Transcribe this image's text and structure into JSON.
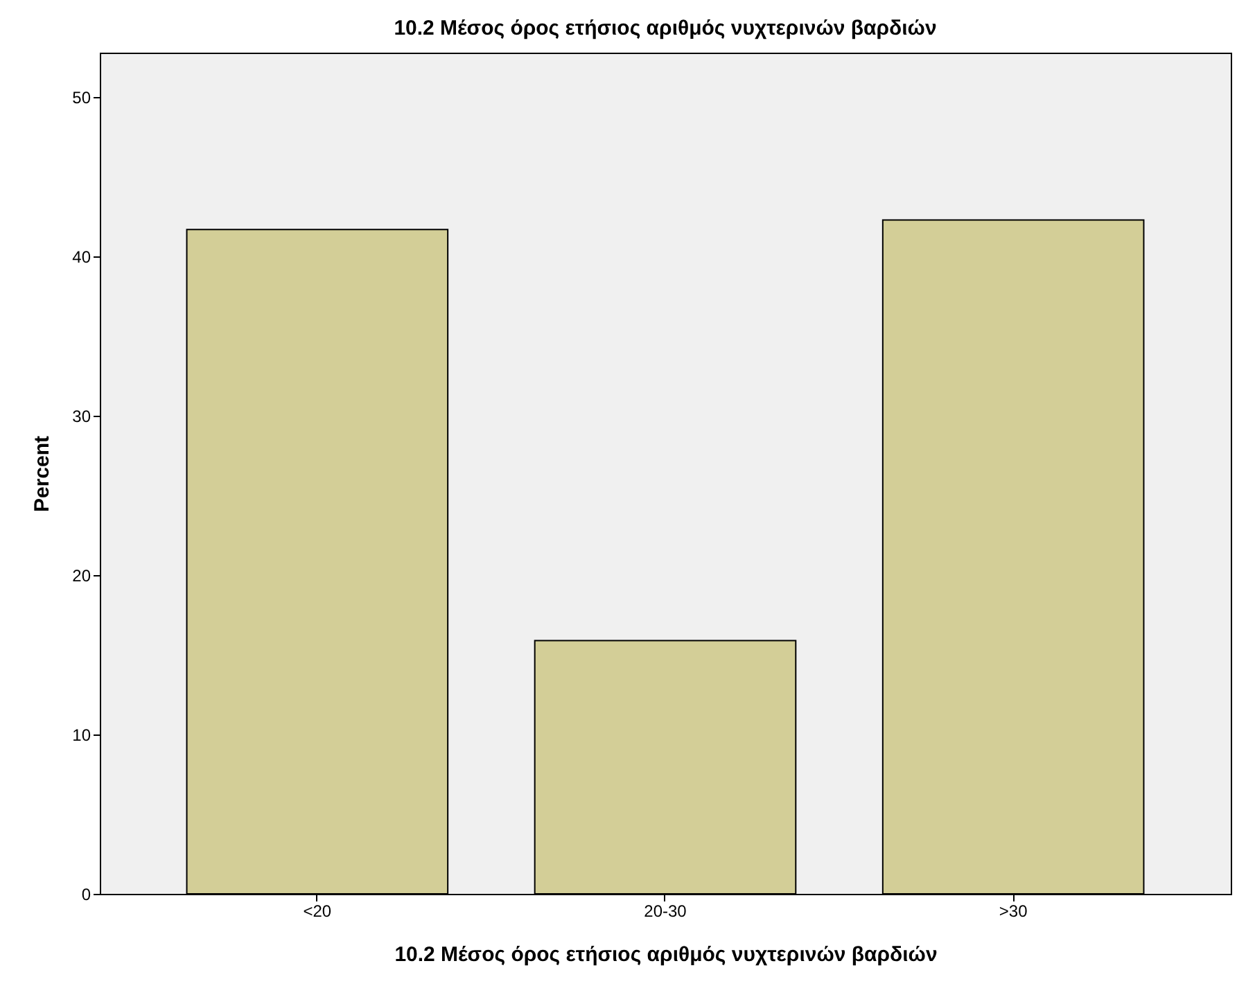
{
  "chart_data": {
    "type": "bar",
    "title": "10.2 Μέσος όρος ετήσιος αριθμός νυχτερινών βαρδιών",
    "xlabel": "10.2 Μέσος όρος ετήσιος αριθμός νυχτερινών βαρδιών",
    "ylabel": "Percent",
    "categories": [
      "<20",
      "20-30",
      ">30"
    ],
    "values": [
      41.7,
      15.9,
      42.3
    ],
    "color": "#d3ce97",
    "ylim": [
      0,
      52.8
    ],
    "yticks": [
      0,
      10,
      20,
      30,
      40,
      50
    ]
  }
}
